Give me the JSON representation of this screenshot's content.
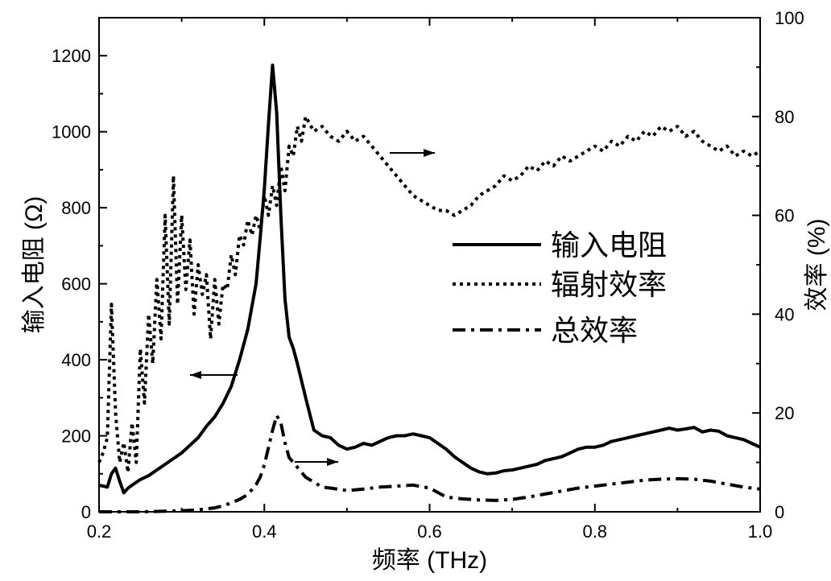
{
  "chart_data": {
    "type": "line",
    "x_axis": {
      "label": "频率 (THz)",
      "range": [
        0.2,
        1.0
      ],
      "ticks": [
        "0.2",
        "0.4",
        "0.6",
        "0.8",
        "1.0"
      ],
      "tick_values": [
        0.2,
        0.4,
        0.6,
        0.8,
        1.0
      ]
    },
    "y_axis_left": {
      "label": "输入电阻 (Ω)",
      "range": [
        0,
        1300
      ],
      "ticks": [
        "0",
        "200",
        "400",
        "600",
        "800",
        "1000",
        "1200"
      ],
      "tick_values": [
        0,
        200,
        400,
        600,
        800,
        1000,
        1200
      ]
    },
    "y_axis_right": {
      "label": "效率 (%)",
      "range": [
        0,
        100
      ],
      "ticks": [
        "0",
        "20",
        "40",
        "60",
        "80",
        "100"
      ],
      "tick_values": [
        0,
        20,
        40,
        60,
        80,
        100
      ]
    },
    "grid": false,
    "legend_position": "center-right",
    "series": [
      {
        "name": "输入电阻",
        "axis": "left",
        "style": "solid",
        "color": "#000000",
        "x": [
          0.2,
          0.21,
          0.215,
          0.22,
          0.225,
          0.23,
          0.235,
          0.24,
          0.25,
          0.26,
          0.27,
          0.28,
          0.29,
          0.3,
          0.31,
          0.32,
          0.33,
          0.34,
          0.35,
          0.36,
          0.37,
          0.38,
          0.39,
          0.395,
          0.4,
          0.405,
          0.41,
          0.415,
          0.42,
          0.425,
          0.43,
          0.435,
          0.44,
          0.45,
          0.46,
          0.47,
          0.48,
          0.49,
          0.5,
          0.51,
          0.52,
          0.53,
          0.54,
          0.55,
          0.56,
          0.57,
          0.58,
          0.59,
          0.6,
          0.61,
          0.62,
          0.63,
          0.64,
          0.65,
          0.66,
          0.67,
          0.68,
          0.69,
          0.7,
          0.71,
          0.72,
          0.73,
          0.74,
          0.75,
          0.76,
          0.77,
          0.78,
          0.79,
          0.8,
          0.81,
          0.82,
          0.83,
          0.84,
          0.85,
          0.86,
          0.87,
          0.88,
          0.89,
          0.9,
          0.91,
          0.92,
          0.93,
          0.94,
          0.95,
          0.96,
          0.97,
          0.98,
          0.99,
          1.0
        ],
        "y": [
          70,
          65,
          100,
          115,
          80,
          50,
          62,
          70,
          85,
          95,
          110,
          125,
          140,
          155,
          175,
          195,
          225,
          250,
          285,
          330,
          400,
          480,
          600,
          720,
          850,
          1020,
          1175,
          1050,
          780,
          560,
          460,
          430,
          390,
          300,
          215,
          200,
          195,
          175,
          165,
          170,
          180,
          175,
          185,
          195,
          200,
          200,
          205,
          200,
          195,
          180,
          165,
          145,
          130,
          115,
          105,
          100,
          102,
          108,
          110,
          115,
          120,
          125,
          135,
          140,
          145,
          155,
          165,
          170,
          170,
          175,
          185,
          190,
          195,
          200,
          205,
          210,
          215,
          220,
          215,
          218,
          222,
          210,
          215,
          212,
          200,
          195,
          190,
          180,
          170
        ]
      },
      {
        "name": "辐射效率",
        "axis": "right",
        "style": "dotted",
        "color": "#000000",
        "x": [
          0.2,
          0.205,
          0.21,
          0.215,
          0.22,
          0.225,
          0.23,
          0.235,
          0.24,
          0.245,
          0.25,
          0.255,
          0.26,
          0.265,
          0.27,
          0.275,
          0.28,
          0.285,
          0.29,
          0.295,
          0.3,
          0.305,
          0.31,
          0.315,
          0.32,
          0.325,
          0.33,
          0.335,
          0.34,
          0.345,
          0.35,
          0.355,
          0.36,
          0.365,
          0.37,
          0.375,
          0.38,
          0.385,
          0.39,
          0.395,
          0.4,
          0.405,
          0.41,
          0.415,
          0.42,
          0.425,
          0.43,
          0.435,
          0.44,
          0.445,
          0.45,
          0.46,
          0.47,
          0.48,
          0.49,
          0.5,
          0.51,
          0.52,
          0.53,
          0.54,
          0.55,
          0.56,
          0.57,
          0.58,
          0.59,
          0.6,
          0.61,
          0.62,
          0.63,
          0.64,
          0.65,
          0.66,
          0.67,
          0.68,
          0.69,
          0.7,
          0.71,
          0.72,
          0.73,
          0.74,
          0.75,
          0.76,
          0.77,
          0.78,
          0.79,
          0.8,
          0.81,
          0.82,
          0.83,
          0.84,
          0.85,
          0.86,
          0.87,
          0.88,
          0.89,
          0.9,
          0.91,
          0.92,
          0.93,
          0.94,
          0.95,
          0.96,
          0.97,
          0.98,
          0.99,
          1.0
        ],
        "y": [
          10,
          12,
          15,
          42,
          20,
          10,
          14,
          8,
          18,
          10,
          33,
          22,
          40,
          30,
          47,
          35,
          60,
          38,
          68,
          42,
          60,
          45,
          55,
          40,
          50,
          44,
          48,
          35,
          47,
          38,
          46,
          45,
          52,
          48,
          56,
          54,
          59,
          56,
          60,
          57,
          64,
          60,
          66,
          62,
          70,
          65,
          74,
          72,
          78,
          75,
          80,
          77,
          78,
          76,
          75,
          77,
          75,
          76,
          74,
          72,
          70,
          68,
          66,
          64,
          63,
          62,
          61,
          61,
          60,
          61,
          62,
          64,
          65,
          66,
          68,
          67,
          68,
          70,
          69,
          71,
          70,
          72,
          71,
          72,
          73,
          74,
          73,
          75,
          74,
          76,
          75,
          77,
          76,
          78,
          77,
          78,
          76,
          77,
          75,
          74,
          73,
          74,
          72,
          73,
          72,
          73
        ],
        "annotation": "arrow pointing right"
      },
      {
        "name": "总效率",
        "axis": "right",
        "style": "dash-dot",
        "color": "#000000",
        "x": [
          0.2,
          0.25,
          0.3,
          0.32,
          0.34,
          0.35,
          0.36,
          0.37,
          0.38,
          0.39,
          0.395,
          0.4,
          0.405,
          0.41,
          0.415,
          0.42,
          0.425,
          0.43,
          0.44,
          0.45,
          0.46,
          0.47,
          0.48,
          0.5,
          0.52,
          0.54,
          0.56,
          0.58,
          0.6,
          0.62,
          0.64,
          0.66,
          0.68,
          0.7,
          0.72,
          0.74,
          0.76,
          0.78,
          0.8,
          0.82,
          0.84,
          0.86,
          0.88,
          0.9,
          0.92,
          0.94,
          0.96,
          0.98,
          1.0
        ],
        "y": [
          0,
          0,
          0.2,
          0.4,
          0.8,
          1.2,
          1.8,
          2.5,
          3.5,
          5.5,
          7,
          9.5,
          13,
          16.5,
          19.5,
          18,
          14,
          11,
          9,
          7,
          6,
          5,
          4.8,
          4.3,
          4.6,
          5,
          5.2,
          5.4,
          4.8,
          3,
          2.6,
          2.4,
          2.3,
          2.5,
          3,
          3.6,
          4.2,
          4.8,
          5.2,
          5.6,
          6,
          6.4,
          6.6,
          6.7,
          6.6,
          6.2,
          5.6,
          5,
          4.6
        ],
        "annotation": "arrow pointing right"
      }
    ],
    "left_annotation": "arrow pointing left"
  }
}
